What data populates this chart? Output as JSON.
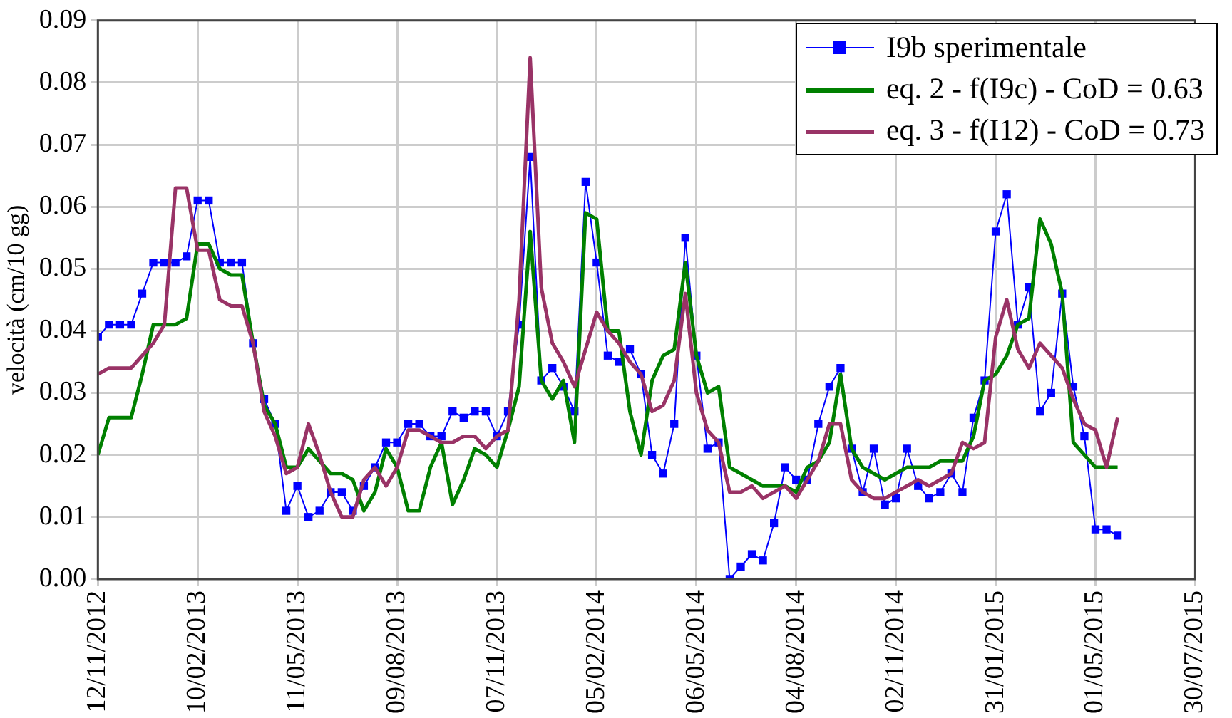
{
  "chart_data": {
    "type": "line",
    "ylabel": "velocità (cm/10 gg)",
    "x": [
      "2012-11-12",
      "2012-11-22",
      "2012-12-02",
      "2012-12-12",
      "2012-12-22",
      "2013-01-01",
      "2013-01-11",
      "2013-01-21",
      "2013-01-31",
      "2013-02-10",
      "2013-02-20",
      "2013-03-02",
      "2013-03-12",
      "2013-03-22",
      "2013-04-01",
      "2013-04-11",
      "2013-04-21",
      "2013-05-01",
      "2013-05-11",
      "2013-05-21",
      "2013-05-31",
      "2013-06-10",
      "2013-06-20",
      "2013-06-30",
      "2013-07-10",
      "2013-07-20",
      "2013-07-30",
      "2013-08-09",
      "2013-08-19",
      "2013-08-29",
      "2013-09-08",
      "2013-09-18",
      "2013-09-28",
      "2013-10-08",
      "2013-10-18",
      "2013-10-28",
      "2013-11-07",
      "2013-11-17",
      "2013-11-27",
      "2013-12-07",
      "2013-12-17",
      "2013-12-27",
      "2014-01-06",
      "2014-01-16",
      "2014-01-26",
      "2014-02-05",
      "2014-02-15",
      "2014-02-25",
      "2014-03-07",
      "2014-03-17",
      "2014-03-27",
      "2014-04-06",
      "2014-04-16",
      "2014-04-26",
      "2014-05-06",
      "2014-05-16",
      "2014-05-26",
      "2014-06-05",
      "2014-06-15",
      "2014-06-25",
      "2014-07-05",
      "2014-07-15",
      "2014-07-25",
      "2014-08-04",
      "2014-08-14",
      "2014-08-24",
      "2014-09-03",
      "2014-09-13",
      "2014-09-23",
      "2014-10-03",
      "2014-10-13",
      "2014-10-23",
      "2014-11-02",
      "2014-11-12",
      "2014-11-22",
      "2014-12-02",
      "2014-12-12",
      "2014-12-22",
      "2015-01-01",
      "2015-01-11",
      "2015-01-21",
      "2015-01-31",
      "2015-02-10",
      "2015-02-20",
      "2015-03-02",
      "2015-03-12",
      "2015-03-22",
      "2015-04-01",
      "2015-04-11",
      "2015-04-21",
      "2015-05-01",
      "2015-05-11",
      "2015-05-21"
    ],
    "series": [
      {
        "name": "I9b sperimentale",
        "color": "#0000ff",
        "marker": "square",
        "values": [
          0.039,
          0.041,
          0.041,
          0.041,
          0.046,
          0.051,
          0.051,
          0.051,
          0.052,
          0.061,
          0.061,
          0.051,
          0.051,
          0.051,
          0.038,
          0.029,
          0.025,
          0.011,
          0.015,
          0.01,
          0.011,
          0.014,
          0.014,
          0.011,
          0.015,
          0.018,
          0.022,
          0.022,
          0.025,
          0.025,
          0.023,
          0.023,
          0.027,
          0.026,
          0.027,
          0.027,
          0.023,
          0.027,
          0.041,
          0.068,
          0.032,
          0.034,
          0.031,
          0.027,
          0.064,
          0.051,
          0.036,
          0.035,
          0.037,
          0.033,
          0.02,
          0.017,
          0.025,
          0.055,
          0.036,
          0.021,
          0.022,
          0.0,
          0.002,
          0.004,
          0.003,
          0.009,
          0.018,
          0.016,
          0.016,
          0.025,
          0.031,
          0.034,
          0.021,
          0.014,
          0.021,
          0.012,
          0.013,
          0.021,
          0.015,
          0.013,
          0.014,
          0.017,
          0.014,
          0.026,
          0.032,
          0.056,
          0.062,
          0.041,
          0.047,
          0.027,
          0.03,
          0.046,
          0.031,
          0.023,
          0.008,
          0.008,
          0.007
        ]
      },
      {
        "name": "eq. 2 - f(I9c) - CoD = 0.63",
        "color": "#008000",
        "values": [
          0.02,
          0.026,
          0.026,
          0.026,
          0.033,
          0.041,
          0.041,
          0.041,
          0.042,
          0.054,
          0.054,
          0.05,
          0.049,
          0.049,
          0.038,
          0.028,
          0.025,
          0.018,
          0.018,
          0.021,
          0.019,
          0.017,
          0.017,
          0.016,
          0.011,
          0.014,
          0.021,
          0.018,
          0.011,
          0.011,
          0.018,
          0.022,
          0.012,
          0.016,
          0.021,
          0.02,
          0.018,
          0.024,
          0.031,
          0.056,
          0.032,
          0.029,
          0.032,
          0.022,
          0.059,
          0.058,
          0.04,
          0.04,
          0.027,
          0.02,
          0.032,
          0.036,
          0.037,
          0.051,
          0.036,
          0.03,
          0.031,
          0.018,
          0.017,
          0.016,
          0.015,
          0.015,
          0.015,
          0.014,
          0.018,
          0.019,
          0.022,
          0.033,
          0.021,
          0.018,
          0.017,
          0.016,
          0.017,
          0.018,
          0.018,
          0.018,
          0.019,
          0.019,
          0.019,
          0.023,
          0.032,
          0.033,
          0.036,
          0.041,
          0.042,
          0.058,
          0.054,
          0.046,
          0.022,
          0.02,
          0.018,
          0.018,
          0.018
        ]
      },
      {
        "name": "eq. 3 - f(I12) - CoD = 0.73",
        "color": "#993366",
        "values": [
          0.033,
          0.034,
          0.034,
          0.034,
          0.036,
          0.038,
          0.041,
          0.063,
          0.063,
          0.053,
          0.053,
          0.045,
          0.044,
          0.044,
          0.038,
          0.027,
          0.023,
          0.017,
          0.018,
          0.025,
          0.02,
          0.014,
          0.01,
          0.01,
          0.016,
          0.018,
          0.015,
          0.018,
          0.024,
          0.024,
          0.023,
          0.022,
          0.022,
          0.023,
          0.023,
          0.021,
          0.023,
          0.024,
          0.045,
          0.084,
          0.047,
          0.038,
          0.035,
          0.031,
          0.037,
          0.043,
          0.04,
          0.038,
          0.035,
          0.033,
          0.027,
          0.028,
          0.032,
          0.046,
          0.03,
          0.024,
          0.022,
          0.014,
          0.014,
          0.015,
          0.013,
          0.014,
          0.015,
          0.013,
          0.016,
          0.019,
          0.025,
          0.025,
          0.016,
          0.014,
          0.013,
          0.013,
          0.014,
          0.015,
          0.016,
          0.015,
          0.016,
          0.017,
          0.022,
          0.021,
          0.022,
          0.039,
          0.045,
          0.037,
          0.034,
          0.038,
          0.036,
          0.034,
          0.029,
          0.025,
          0.024,
          0.018,
          0.026
        ]
      }
    ],
    "xlim": [
      "2012-11-12",
      "2015-07-30"
    ],
    "xticks": [
      {
        "value": "2012-11-12",
        "label": "12/11/2012"
      },
      {
        "value": "2013-02-10",
        "label": "10/02/2013"
      },
      {
        "value": "2013-05-11",
        "label": "11/05/2013"
      },
      {
        "value": "2013-08-09",
        "label": "09/08/2013"
      },
      {
        "value": "2013-11-07",
        "label": "07/11/2013"
      },
      {
        "value": "2014-02-05",
        "label": "05/02/2014"
      },
      {
        "value": "2014-05-06",
        "label": "06/05/2014"
      },
      {
        "value": "2014-08-04",
        "label": "04/08/2014"
      },
      {
        "value": "2014-11-02",
        "label": "02/11/2014"
      },
      {
        "value": "2015-01-31",
        "label": "31/01/2015"
      },
      {
        "value": "2015-05-01",
        "label": "01/05/2015"
      },
      {
        "value": "2015-07-30",
        "label": "30/07/2015"
      }
    ],
    "ylim": [
      0,
      0.09
    ],
    "yticks": [
      {
        "value": 0,
        "label": "0.00"
      },
      {
        "value": 0.01,
        "label": "0.01"
      },
      {
        "value": 0.02,
        "label": "0.02"
      },
      {
        "value": 0.03,
        "label": "0.03"
      },
      {
        "value": 0.04,
        "label": "0.04"
      },
      {
        "value": 0.05,
        "label": "0.05"
      },
      {
        "value": 0.06,
        "label": "0.06"
      },
      {
        "value": 0.07,
        "label": "0.07"
      },
      {
        "value": 0.08,
        "label": "0.08"
      },
      {
        "value": 0.09,
        "label": "0.09"
      }
    ],
    "grid": true,
    "legend": "top right"
  }
}
